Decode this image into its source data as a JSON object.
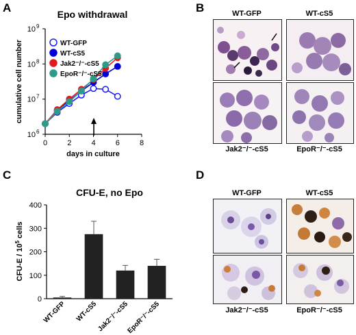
{
  "panels": {
    "A": "A",
    "B": "B",
    "C": "C",
    "D": "D"
  },
  "chart_data": [
    {
      "type": "line",
      "title": "Epo withdrawal",
      "xlabel": "days in culture",
      "ylabel": "cumulative cell number",
      "x_ticks": [
        "0",
        "2",
        "4",
        "6",
        "8"
      ],
      "y_ticks": [
        "10",
        "10",
        "10",
        "10"
      ],
      "y_tick_exponents": [
        "6",
        "7",
        "8",
        "9"
      ],
      "y_scale": "log",
      "xlim": [
        0,
        8
      ],
      "ylim": [
        1000000,
        1000000000
      ],
      "legend_placement": "top-left",
      "annotation": "arrow at day 4",
      "series": [
        {
          "name": "WT-GFP",
          "color": "#1a1aff",
          "marker": "open-circle",
          "x": [
            0,
            1,
            2,
            3,
            4,
            5,
            6
          ],
          "y": [
            2000000,
            4200000,
            7500000,
            13000000,
            20000000,
            19000000,
            12000000
          ]
        },
        {
          "name": "WT-cS5",
          "color": "#0000dd",
          "marker": "filled-circle",
          "x": [
            0,
            1,
            2,
            3,
            4,
            5,
            6
          ],
          "y": [
            2000000,
            4800000,
            9000000,
            17000000,
            30000000,
            52000000,
            85000000
          ]
        },
        {
          "name": "Jak2⁻/⁻-cS5",
          "color": "#e31a1c",
          "marker": "filled-circle",
          "x": [
            0,
            1,
            2,
            3,
            4,
            5,
            6
          ],
          "y": [
            2000000,
            5000000,
            10000000,
            19000000,
            36000000,
            75000000,
            150000000
          ]
        },
        {
          "name": "EpoR⁻/⁻-cS5",
          "color": "#2e9b8a",
          "marker": "filled-circle",
          "x": [
            0,
            1,
            2,
            3,
            4,
            5,
            6
          ],
          "y": [
            2000000,
            4500000,
            8500000,
            17000000,
            38000000,
            95000000,
            170000000
          ]
        }
      ]
    },
    {
      "type": "bar",
      "title": "CFU-E, no Epo",
      "ylabel": "CFU-E / 10",
      "ylabel_sup": "5",
      "ylabel_suffix": " cells",
      "categories": [
        "WT-GFP",
        "WT-cS5",
        "Jak2⁻/⁻-cS5",
        "EpoR⁻/⁻-cS5"
      ],
      "values": [
        5,
        275,
        120,
        140
      ],
      "errors": [
        5,
        55,
        22,
        28
      ],
      "y_ticks": [
        "0",
        "100",
        "200",
        "300",
        "400"
      ],
      "ylim": [
        0,
        400
      ],
      "bar_color": "#222222"
    }
  ],
  "micrographs_B": {
    "top_left": "WT-GFP",
    "top_right": "WT-cS5",
    "bottom_left": "Jak2⁻/⁻-cS5",
    "bottom_right": "EpoR⁻/⁻-cS5"
  },
  "micrographs_D": {
    "top_left": "WT-GFP",
    "top_right": "WT-cS5",
    "bottom_left": "Jak2⁻/⁻-cS5",
    "bottom_right": "EpoR⁻/⁻-cS5"
  }
}
